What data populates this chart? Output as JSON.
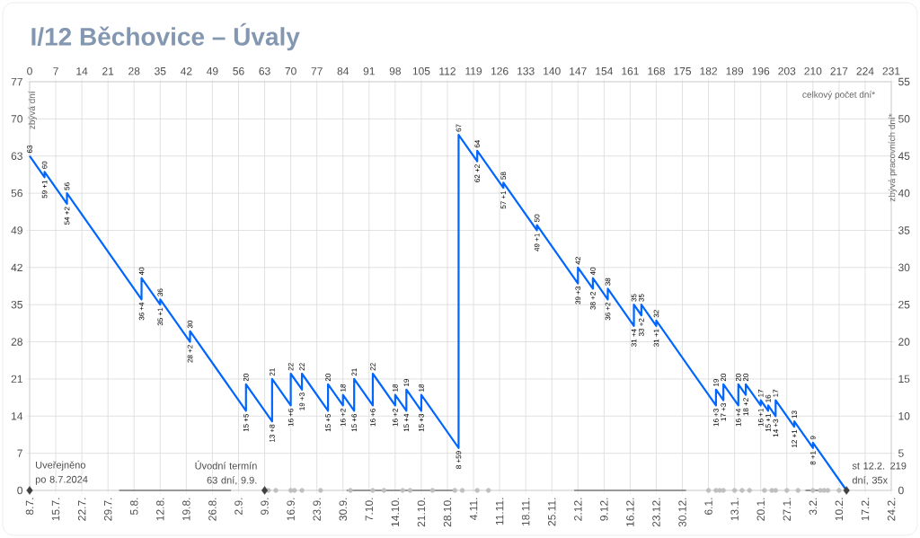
{
  "chart_data": {
    "type": "line",
    "title": "I/12 Běchovice – Úvaly",
    "ylabel": "zbývá dní",
    "y2label": "zbývá pracovních dní*",
    "x2label": "celkový počet dní*",
    "xlim": [
      0,
      231
    ],
    "ylim": [
      0,
      77
    ],
    "x2lim": [
      "2024-07-08",
      "2025-02-24"
    ],
    "y2lim": [
      0,
      55
    ],
    "yticks": [
      0,
      7,
      14,
      21,
      28,
      35,
      42,
      49,
      56,
      63,
      70,
      77
    ],
    "y2ticks": [
      0,
      5,
      10,
      15,
      20,
      25,
      30,
      35,
      40,
      45,
      50,
      55
    ],
    "xticks": [
      0,
      7,
      14,
      21,
      28,
      35,
      42,
      49,
      56,
      63,
      70,
      77,
      84,
      91,
      98,
      105,
      112,
      119,
      126,
      133,
      140,
      147,
      154,
      161,
      168,
      175,
      182,
      189,
      196,
      203,
      210,
      217,
      224,
      231
    ],
    "x2ticks": [
      {
        "value": "2024-07-08",
        "label": "8.7."
      },
      {
        "value": "2024-07-15",
        "label": "15.7."
      },
      {
        "value": "2024-07-22",
        "label": "22.7."
      },
      {
        "value": "2024-07-29",
        "label": "29.7."
      },
      {
        "value": "2024-08-05",
        "label": "5.8."
      },
      {
        "value": "2024-08-12",
        "label": "12.8."
      },
      {
        "value": "2024-08-19",
        "label": "19.8."
      },
      {
        "value": "2024-08-26",
        "label": "26.8."
      },
      {
        "value": "2024-09-02",
        "label": "2.9."
      },
      {
        "value": "2024-09-09",
        "label": "9.9."
      },
      {
        "value": "2024-09-16",
        "label": "16.9."
      },
      {
        "value": "2024-09-23",
        "label": "23.9."
      },
      {
        "value": "2024-09-30",
        "label": "30.9."
      },
      {
        "value": "2024-10-07",
        "label": "7.10."
      },
      {
        "value": "2024-10-14",
        "label": "14.10."
      },
      {
        "value": "2024-10-21",
        "label": "21.10."
      },
      {
        "value": "2024-10-28",
        "label": "28.10."
      },
      {
        "value": "2024-11-04",
        "label": "4.11."
      },
      {
        "value": "2024-11-11",
        "label": "11.11."
      },
      {
        "value": "2024-11-18",
        "label": "18.11."
      },
      {
        "value": "2024-11-25",
        "label": "25.11."
      },
      {
        "value": "2024-12-02",
        "label": "2.12."
      },
      {
        "value": "2024-12-09",
        "label": "9.12."
      },
      {
        "value": "2024-12-16",
        "label": "16.12."
      },
      {
        "value": "2024-12-23",
        "label": "23.12."
      },
      {
        "value": "2024-12-30",
        "label": "30.12."
      },
      {
        "value": "2025-01-06",
        "label": "6.1."
      },
      {
        "value": "2025-01-13",
        "label": "13.1."
      },
      {
        "value": "2025-01-20",
        "label": "20.1."
      },
      {
        "value": "2025-01-27",
        "label": "27.1."
      },
      {
        "value": "2025-02-03",
        "label": "3.2."
      },
      {
        "value": "2025-02-10",
        "label": "10.2."
      },
      {
        "value": "2025-02-17",
        "label": "17.2."
      },
      {
        "value": "2025-02-24",
        "label": "24.2."
      }
    ],
    "grid": true,
    "series": [
      {
        "color": "#0066ff",
        "marker": "none",
        "x": [
          0,
          4,
          4,
          10,
          10,
          30,
          30,
          35,
          35,
          43,
          43,
          58,
          58,
          65,
          65,
          70,
          70,
          73,
          73,
          80,
          80,
          84,
          84,
          87,
          87,
          92,
          92,
          98,
          98,
          101,
          101,
          105,
          105,
          115,
          115,
          120,
          120,
          127,
          127,
          136,
          136,
          147,
          147,
          151,
          151,
          155,
          155,
          162,
          162,
          164,
          164,
          168,
          168,
          184,
          184,
          186,
          186,
          190,
          190,
          192,
          192,
          196,
          196,
          198,
          198,
          200,
          200,
          205,
          205,
          210,
          210,
          219
        ],
        "values": [
          63,
          59,
          60,
          54,
          56,
          36,
          40,
          35,
          36,
          28,
          30,
          15,
          20,
          13,
          21,
          16,
          22,
          19,
          22,
          15,
          20,
          16,
          18,
          15,
          21,
          16,
          22,
          16,
          18,
          15,
          19,
          15,
          18,
          8,
          67,
          62,
          64,
          57,
          58,
          49,
          50,
          39,
          42,
          38,
          40,
          36,
          38,
          31,
          35,
          33,
          35,
          31,
          32,
          16,
          19,
          17,
          20,
          16,
          20,
          18,
          20,
          16,
          17,
          15,
          16,
          14,
          17,
          12,
          13,
          8,
          9,
          0
        ]
      },
      {
        "type": "line",
        "color": "#7f7f7f",
        "marker": "none",
        "x": [
          24,
          54
        ],
        "values": [
          0,
          0
        ]
      },
      {
        "type": "line",
        "color": "#7f7f7f",
        "marker": "none",
        "x": [
          85,
          114
        ],
        "values": [
          0,
          0
        ]
      },
      {
        "type": "line",
        "color": "#7f7f7f",
        "marker": "none",
        "x": [
          146,
          176
        ],
        "values": [
          0,
          0
        ]
      },
      {
        "type": "line",
        "color": "#7f7f7f",
        "marker": "none",
        "x": [
          208,
          214
        ],
        "values": [
          0,
          0
        ]
      },
      {
        "type": "scatter",
        "color": "#bfbfbf",
        "marker": "circle",
        "x": [
          64,
          66,
          70,
          71,
          73,
          78,
          86,
          92,
          95,
          100,
          102,
          108,
          114,
          116,
          120,
          123,
          182,
          184,
          185,
          186,
          189,
          191,
          193,
          197,
          199,
          200,
          203,
          206,
          210,
          212,
          213,
          214,
          217
        ],
        "values": [
          0,
          0,
          0,
          0,
          0,
          0,
          0,
          0,
          0,
          0,
          0,
          0,
          0,
          0,
          0,
          0,
          0,
          0,
          0,
          0,
          0,
          0,
          0,
          0,
          0,
          0,
          0,
          0,
          0,
          0,
          0,
          0,
          0
        ]
      },
      {
        "type": "scatter",
        "color": "#404040",
        "marker": "diamond",
        "x": [
          0,
          63,
          219
        ],
        "values": [
          0,
          0,
          0
        ]
      }
    ],
    "annotations": [
      {
        "text": "Uveřejněno po 8.7.2024",
        "x": 0,
        "y": 0
      },
      {
        "text": "Úvodní termín 63 dní, 9.9.",
        "x": 63,
        "y": 0
      },
      {
        "text": "st 12.2. 219 dní, 35x",
        "x": 219,
        "y": 0
      },
      {
        "text": "63",
        "x": 0,
        "y": 63
      },
      {
        "text": "59 +1",
        "x": 4,
        "y": 59
      },
      {
        "text": "60",
        "x": 4,
        "y": 60
      },
      {
        "text": "54 +2",
        "x": 10,
        "y": 54
      },
      {
        "text": "56",
        "x": 10,
        "y": 56
      },
      {
        "text": "36 +4",
        "x": 30,
        "y": 36
      },
      {
        "text": "40",
        "x": 30,
        "y": 40
      },
      {
        "text": "35 +1",
        "x": 35,
        "y": 35
      },
      {
        "text": "36",
        "x": 35,
        "y": 36
      },
      {
        "text": "28 +2",
        "x": 43,
        "y": 28
      },
      {
        "text": "30",
        "x": 43,
        "y": 30
      },
      {
        "text": "15 +5",
        "x": 58,
        "y": 15
      },
      {
        "text": "20",
        "x": 58,
        "y": 20
      },
      {
        "text": "13 +8",
        "x": 65,
        "y": 13
      },
      {
        "text": "21",
        "x": 65,
        "y": 21
      },
      {
        "text": "16 +6",
        "x": 70,
        "y": 16
      },
      {
        "text": "22",
        "x": 70,
        "y": 22
      },
      {
        "text": "19 +3",
        "x": 73,
        "y": 19
      },
      {
        "text": "22",
        "x": 73,
        "y": 22
      },
      {
        "text": "15 +5",
        "x": 80,
        "y": 15
      },
      {
        "text": "20",
        "x": 80,
        "y": 20
      },
      {
        "text": "16 +2",
        "x": 84,
        "y": 16
      },
      {
        "text": "18",
        "x": 84,
        "y": 18
      },
      {
        "text": "15 +6",
        "x": 87,
        "y": 15
      },
      {
        "text": "21",
        "x": 87,
        "y": 21
      },
      {
        "text": "16 +6",
        "x": 92,
        "y": 16
      },
      {
        "text": "22",
        "x": 92,
        "y": 22
      },
      {
        "text": "16 +2",
        "x": 98,
        "y": 16
      },
      {
        "text": "18",
        "x": 98,
        "y": 18
      },
      {
        "text": "15 +4",
        "x": 101,
        "y": 15
      },
      {
        "text": "19",
        "x": 101,
        "y": 19
      },
      {
        "text": "15 +3",
        "x": 105,
        "y": 15
      },
      {
        "text": "18",
        "x": 105,
        "y": 18
      },
      {
        "text": "8 +59",
        "x": 115,
        "y": 8
      },
      {
        "text": "67",
        "x": 115,
        "y": 67
      },
      {
        "text": "62 +2",
        "x": 120,
        "y": 62
      },
      {
        "text": "64",
        "x": 120,
        "y": 64
      },
      {
        "text": "57 +1",
        "x": 127,
        "y": 57
      },
      {
        "text": "58",
        "x": 127,
        "y": 58
      },
      {
        "text": "49 +1",
        "x": 136,
        "y": 49
      },
      {
        "text": "50",
        "x": 136,
        "y": 50
      },
      {
        "text": "39 +3",
        "x": 147,
        "y": 39
      },
      {
        "text": "42",
        "x": 147,
        "y": 42
      },
      {
        "text": "38 +2",
        "x": 151,
        "y": 38
      },
      {
        "text": "40",
        "x": 151,
        "y": 40
      },
      {
        "text": "36 +2",
        "x": 155,
        "y": 36
      },
      {
        "text": "38",
        "x": 155,
        "y": 38
      },
      {
        "text": "31 +4",
        "x": 162,
        "y": 31
      },
      {
        "text": "35",
        "x": 162,
        "y": 35
      },
      {
        "text": "33 +2",
        "x": 164,
        "y": 33
      },
      {
        "text": "35",
        "x": 164,
        "y": 35
      },
      {
        "text": "31 +1",
        "x": 168,
        "y": 31
      },
      {
        "text": "32",
        "x": 168,
        "y": 32
      },
      {
        "text": "16 +3",
        "x": 184,
        "y": 16
      },
      {
        "text": "19",
        "x": 184,
        "y": 19
      },
      {
        "text": "17 +3",
        "x": 186,
        "y": 17
      },
      {
        "text": "20",
        "x": 186,
        "y": 20
      },
      {
        "text": "16 +4",
        "x": 190,
        "y": 16
      },
      {
        "text": "20",
        "x": 190,
        "y": 20
      },
      {
        "text": "18 +2",
        "x": 192,
        "y": 18
      },
      {
        "text": "20",
        "x": 192,
        "y": 20
      },
      {
        "text": "16 +1",
        "x": 196,
        "y": 16
      },
      {
        "text": "17",
        "x": 196,
        "y": 17
      },
      {
        "text": "15 +1",
        "x": 198,
        "y": 15
      },
      {
        "text": "16",
        "x": 198,
        "y": 16
      },
      {
        "text": "14 +3",
        "x": 200,
        "y": 14
      },
      {
        "text": "17",
        "x": 200,
        "y": 17
      },
      {
        "text": "12 +1",
        "x": 205,
        "y": 12
      },
      {
        "text": "13",
        "x": 205,
        "y": 13
      },
      {
        "text": "8 +1",
        "x": 210,
        "y": 8
      },
      {
        "text": "9",
        "x": 210,
        "y": 9
      }
    ]
  }
}
